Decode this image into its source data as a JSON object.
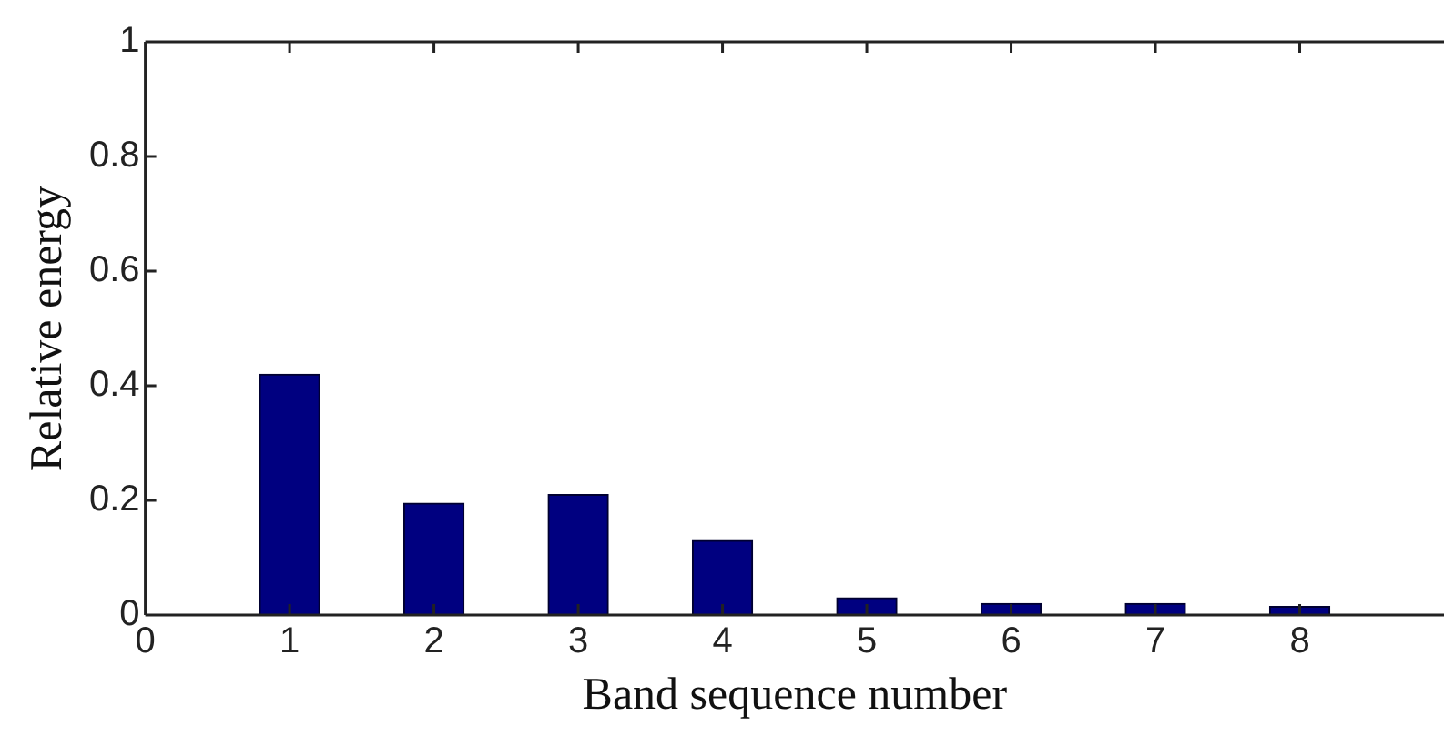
{
  "chart_data": {
    "type": "bar",
    "xlabel": "Band sequence number",
    "ylabel": "Relative energy",
    "x": [
      1,
      2,
      3,
      4,
      5,
      6,
      7,
      8
    ],
    "values": [
      0.42,
      0.195,
      0.21,
      0.13,
      0.03,
      0.02,
      0.02,
      0.015
    ],
    "color": "#000080",
    "xlim": [
      0,
      9
    ],
    "xticks": [
      0,
      1,
      2,
      3,
      4,
      5,
      6,
      7,
      8
    ],
    "ylim": [
      0,
      1
    ],
    "yticks": [
      0,
      0.2,
      0.4,
      0.6,
      0.8,
      1
    ],
    "grid": false,
    "legend": false
  }
}
